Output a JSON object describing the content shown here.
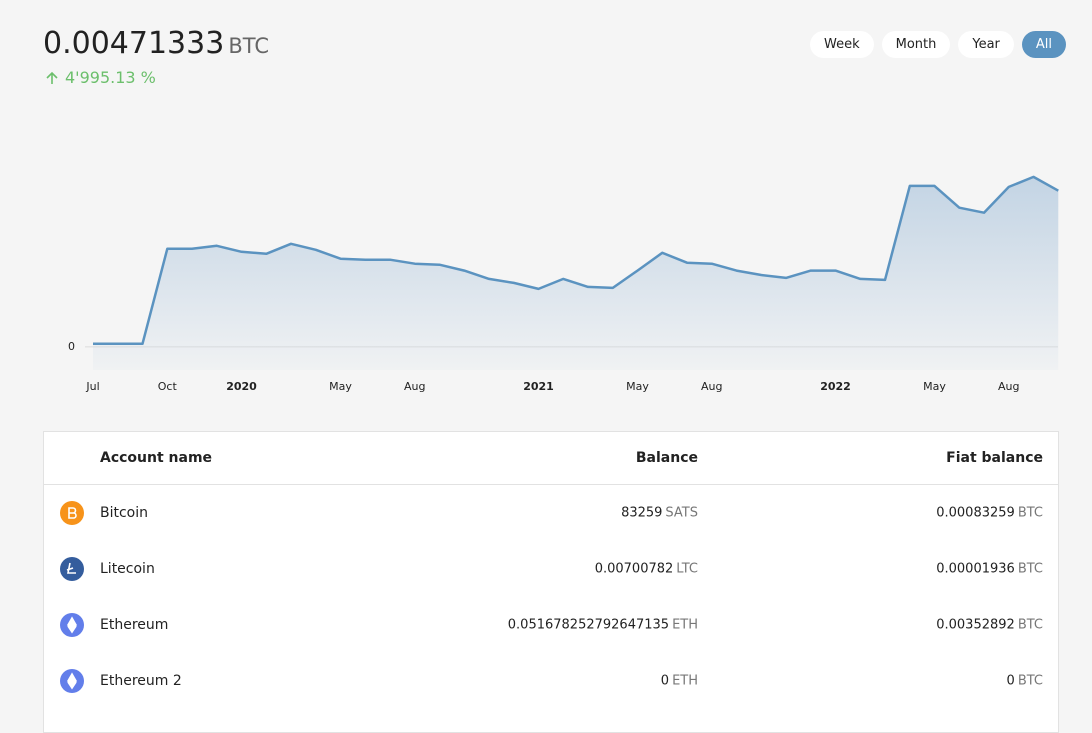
{
  "header": {
    "amount": "0.00471333",
    "unit": "BTC",
    "change": "4'995.13 %"
  },
  "range_buttons": {
    "labels": [
      "Week",
      "Month",
      "Year",
      "All"
    ],
    "active": "All"
  },
  "chart_data": {
    "type": "area",
    "color": "#5b93c0",
    "x": [
      "2019-07",
      "2019-08",
      "2019-09",
      "2019-10",
      "2019-11",
      "2019-12",
      "2020-01",
      "2020-02",
      "2020-03",
      "2020-04",
      "2020-05",
      "2020-06",
      "2020-07",
      "2020-08",
      "2020-09",
      "2020-10",
      "2020-11",
      "2020-12",
      "2021-01",
      "2021-02",
      "2021-03",
      "2021-04",
      "2021-05",
      "2021-06",
      "2021-07",
      "2021-08",
      "2021-09",
      "2021-10",
      "2021-11",
      "2021-12",
      "2022-01",
      "2022-02",
      "2022-03",
      "2022-04",
      "2022-05",
      "2022-06",
      "2022-07",
      "2022-08",
      "2022-09",
      "2022-10"
    ],
    "values": [
      9e-05,
      9e-05,
      9e-05,
      0.00296,
      0.00296,
      0.00305,
      0.00287,
      0.00281,
      0.00311,
      0.00293,
      0.00266,
      0.00263,
      0.00263,
      0.00251,
      0.00248,
      0.0023,
      0.00205,
      0.00193,
      0.00175,
      0.00205,
      0.00181,
      0.00178,
      0.0023,
      0.00284,
      0.00254,
      0.00251,
      0.0023,
      0.00217,
      0.00208,
      0.0023,
      0.0023,
      0.00205,
      0.00202,
      0.00486,
      0.00486,
      0.0042,
      0.00405,
      0.00483,
      0.00513,
      0.00471333
    ],
    "ylim": [
      -0.0007,
      0.007
    ],
    "yticks": [
      0
    ],
    "xticks": [
      {
        "value": "2019-07",
        "label": "Jul"
      },
      {
        "value": "2019-10",
        "label": "Oct"
      },
      {
        "value": "2020-01",
        "label": "2020"
      },
      {
        "value": "2020-05",
        "label": "May"
      },
      {
        "value": "2020-08",
        "label": "Aug"
      },
      {
        "value": "2021-01",
        "label": "2021"
      },
      {
        "value": "2021-05",
        "label": "May"
      },
      {
        "value": "2021-08",
        "label": "Aug"
      },
      {
        "value": "2022-01",
        "label": "2022"
      },
      {
        "value": "2022-05",
        "label": "May"
      },
      {
        "value": "2022-08",
        "label": "Aug"
      }
    ]
  },
  "table": {
    "columns": [
      "Account name",
      "Balance",
      "Fiat balance"
    ],
    "rows": [
      {
        "name": "Bitcoin",
        "balance": {
          "amount": "83259",
          "unit": "SATS"
        },
        "fiat": {
          "amount": "0.00083259",
          "unit": "BTC"
        }
      },
      {
        "name": "Litecoin",
        "balance": {
          "amount": "0.00700782",
          "unit": "LTC"
        },
        "fiat": {
          "amount": "0.00001936",
          "unit": "BTC"
        }
      },
      {
        "name": "Ethereum",
        "balance": {
          "amount": "0.051678252792647135",
          "unit": "ETH"
        },
        "fiat": {
          "amount": "0.00352892",
          "unit": "BTC"
        }
      },
      {
        "name": "Ethereum 2",
        "balance": {
          "amount": "0",
          "unit": "ETH"
        },
        "fiat": {
          "amount": "0",
          "unit": "BTC"
        }
      }
    ]
  }
}
